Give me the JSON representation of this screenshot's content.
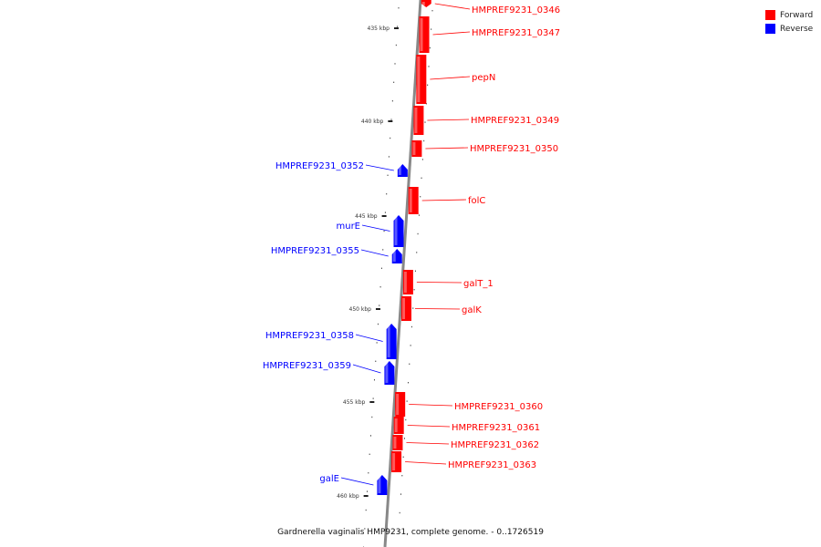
{
  "caption": "Gardnerella vaginalis HMP9231, complete genome. - 0..1726519",
  "legend": [
    {
      "label": "Forward",
      "color": "#ff0000"
    },
    {
      "label": "Reverse",
      "color": "#0000ff"
    }
  ],
  "colors": {
    "forward": "#ff0000",
    "reverse": "#0000ff",
    "backbone": "#888888"
  },
  "scale_marks": [
    {
      "label": "435 kbp",
      "kbp": 435
    },
    {
      "label": "440 kbp",
      "kbp": 440
    },
    {
      "label": "445 kbp",
      "kbp": 445
    },
    {
      "label": "450 kbp",
      "kbp": 450
    },
    {
      "label": "455 kbp",
      "kbp": 455
    },
    {
      "label": "460 kbp",
      "kbp": 460
    }
  ],
  "genes": [
    {
      "name": "HMPREF9231_0346",
      "strand": "forward"
    },
    {
      "name": "HMPREF9231_0347",
      "strand": "forward"
    },
    {
      "name": "pepN",
      "strand": "forward"
    },
    {
      "name": "HMPREF9231_0349",
      "strand": "forward"
    },
    {
      "name": "HMPREF9231_0350",
      "strand": "forward"
    },
    {
      "name": "HMPREF9231_0352",
      "strand": "reverse"
    },
    {
      "name": "folC",
      "strand": "forward"
    },
    {
      "name": "murE",
      "strand": "reverse"
    },
    {
      "name": "HMPREF9231_0355",
      "strand": "reverse"
    },
    {
      "name": "galT_1",
      "strand": "forward"
    },
    {
      "name": "galK",
      "strand": "forward"
    },
    {
      "name": "HMPREF9231_0358",
      "strand": "reverse"
    },
    {
      "name": "HMPREF9231_0359",
      "strand": "reverse"
    },
    {
      "name": "HMPREF9231_0360",
      "strand": "forward"
    },
    {
      "name": "HMPREF9231_0361",
      "strand": "forward"
    },
    {
      "name": "HMPREF9231_0362",
      "strand": "forward"
    },
    {
      "name": "HMPREF9231_0363",
      "strand": "forward"
    },
    {
      "name": "galE",
      "strand": "reverse"
    }
  ]
}
